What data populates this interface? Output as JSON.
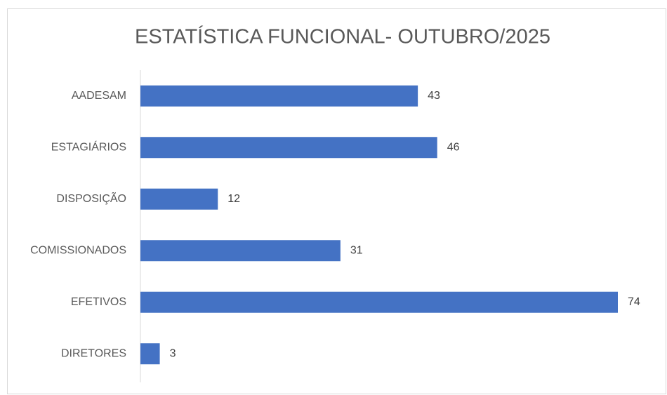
{
  "chart_data": {
    "type": "bar",
    "orientation": "horizontal",
    "title": "ESTATÍSTICA FUNCIONAL- OUTUBRO/2025",
    "categories": [
      "AADESAM",
      "ESTAGIÁRIOS",
      "DISPOSIÇÃO",
      "COMISSIONADOS",
      "EFETIVOS",
      "DIRETORES"
    ],
    "values": [
      43,
      46,
      12,
      31,
      74,
      3
    ],
    "color": "#4472c4"
  }
}
